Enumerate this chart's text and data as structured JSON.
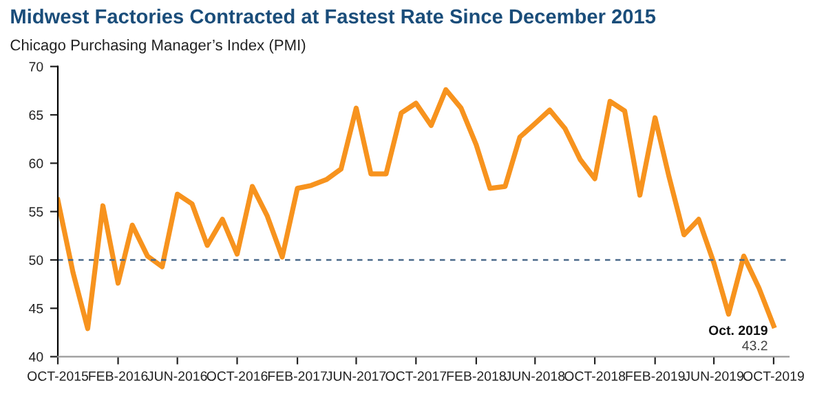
{
  "chart_data": {
    "type": "line",
    "title": "Midwest Factories Contracted at Fastest Rate Since December 2015",
    "subtitle": "Chicago Purchasing Manager’s Index (PMI)",
    "x": [
      "2015-10",
      "2015-11",
      "2015-12",
      "2016-01",
      "2016-02",
      "2016-03",
      "2016-04",
      "2016-05",
      "2016-06",
      "2016-07",
      "2016-08",
      "2016-09",
      "2016-10",
      "2016-11",
      "2016-12",
      "2017-01",
      "2017-02",
      "2017-03",
      "2017-04",
      "2017-05",
      "2017-06",
      "2017-07",
      "2017-08",
      "2017-09",
      "2017-10",
      "2017-11",
      "2017-12",
      "2018-01",
      "2018-02",
      "2018-03",
      "2018-04",
      "2018-05",
      "2018-06",
      "2018-07",
      "2018-08",
      "2018-09",
      "2018-10",
      "2018-11",
      "2018-12",
      "2019-01",
      "2019-02",
      "2019-03",
      "2019-04",
      "2019-05",
      "2019-06",
      "2019-07",
      "2019-08",
      "2019-09",
      "2019-10"
    ],
    "series": [
      {
        "color": "#f7931e",
        "values": [
          56.2,
          48.7,
          42.9,
          55.6,
          47.6,
          53.6,
          50.4,
          49.3,
          56.8,
          55.8,
          51.5,
          54.2,
          50.6,
          57.6,
          54.6,
          50.3,
          57.4,
          57.7,
          58.3,
          59.4,
          65.7,
          58.9,
          58.9,
          65.2,
          66.2,
          63.9,
          67.6,
          65.7,
          61.9,
          57.4,
          57.6,
          62.7,
          64.1,
          65.5,
          63.6,
          60.4,
          58.4,
          66.4,
          65.4,
          56.7,
          64.7,
          58.7,
          52.6,
          54.2,
          49.7,
          44.4,
          50.4,
          47.1,
          43.2
        ]
      }
    ],
    "xlim": [
      "2015-10",
      "2019-11"
    ],
    "xticks": [
      {
        "value": "2015-10",
        "label": "OCT-2015"
      },
      {
        "value": "2016-02",
        "label": "FEB-2016"
      },
      {
        "value": "2016-06",
        "label": "JUN-2016"
      },
      {
        "value": "2016-10",
        "label": "OCT-2016"
      },
      {
        "value": "2017-02",
        "label": "FEB-2017"
      },
      {
        "value": "2017-06",
        "label": "JUN-2017"
      },
      {
        "value": "2017-10",
        "label": "OCT-2017"
      },
      {
        "value": "2018-02",
        "label": "FEB-2018"
      },
      {
        "value": "2018-06",
        "label": "JUN-2018"
      },
      {
        "value": "2018-10",
        "label": "OCT-2018"
      },
      {
        "value": "2019-02",
        "label": "FEB-2019"
      },
      {
        "value": "2019-06",
        "label": "JUN-2019"
      },
      {
        "value": "2019-10",
        "label": "OCT-2019"
      }
    ],
    "ylim": [
      40,
      70
    ],
    "yticks": [
      40,
      45,
      50,
      55,
      60,
      65,
      70
    ],
    "ref_lines": [
      {
        "axis": "y",
        "value": 50,
        "color": "#4a6a8a",
        "line_style": "dashed"
      }
    ],
    "annotations": [
      {
        "text": "Oct. 2019",
        "x": "2019-10",
        "y": 43.2
      },
      {
        "text": "43.2",
        "x": "2019-10",
        "y": 43.2
      }
    ],
    "grid": false,
    "marker": "none",
    "line_style": "solid"
  }
}
